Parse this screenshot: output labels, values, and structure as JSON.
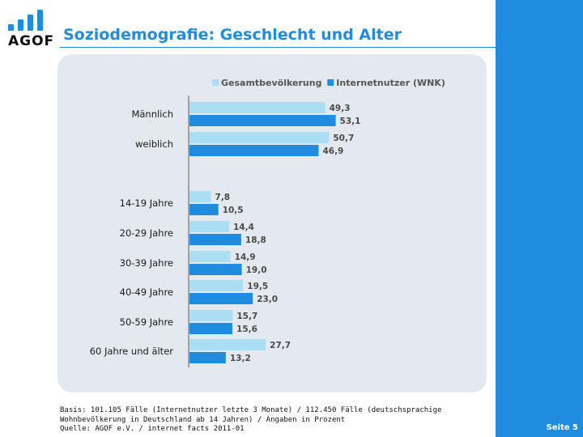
{
  "header": {
    "logo_text": "AGOF",
    "title": "Soziodemografie: Geschlecht und Alter"
  },
  "colors": {
    "accent": "#1f8ce0",
    "series_gesamt": "#a9def5",
    "series_internet": "#1f8ce0",
    "panel_bg": "#e3e9ee"
  },
  "chart_data": {
    "type": "bar",
    "orientation": "horizontal",
    "categories": [
      "Männlich",
      "weiblich",
      "14-19 Jahre",
      "20-29 Jahre",
      "30-39 Jahre",
      "40-49 Jahre",
      "50-59 Jahre",
      "60 Jahre und älter"
    ],
    "groups": [
      [
        0,
        1
      ],
      [
        2,
        3,
        4,
        5,
        6,
        7
      ]
    ],
    "series": [
      {
        "name": "Gesamtbevölkerung",
        "values": [
          49.3,
          50.7,
          7.8,
          14.4,
          14.9,
          19.5,
          15.7,
          27.7
        ],
        "labels": [
          "49,3",
          "50,7",
          "7,8",
          "14,4",
          "14,9",
          "19,5",
          "15,7",
          "27,7"
        ],
        "color": "#a9def5"
      },
      {
        "name": "Internetnutzer (WNK)",
        "values": [
          53.1,
          46.9,
          10.5,
          18.8,
          19.0,
          23.0,
          15.6,
          13.2
        ],
        "labels": [
          "53,1",
          "46,9",
          "10,5",
          "18,8",
          "19,0",
          "23,0",
          "15,6",
          "13,2"
        ],
        "color": "#1f8ce0"
      }
    ],
    "legend_position": "top-right",
    "grid": false,
    "xlim": [
      0,
      60
    ]
  },
  "footer": {
    "line1": "Basis: 101.105 Fälle (Internetnutzer letzte 3 Monate) / 112.450 Fälle (deutschsprachige",
    "line2": "Wohnbevölkerung in Deutschland ab 14 Jahren) / Angaben in Prozent",
    "line3": "Quelle: AGOF e.V. / internet facts 2011-01"
  },
  "page": {
    "label": "Seite 5"
  }
}
